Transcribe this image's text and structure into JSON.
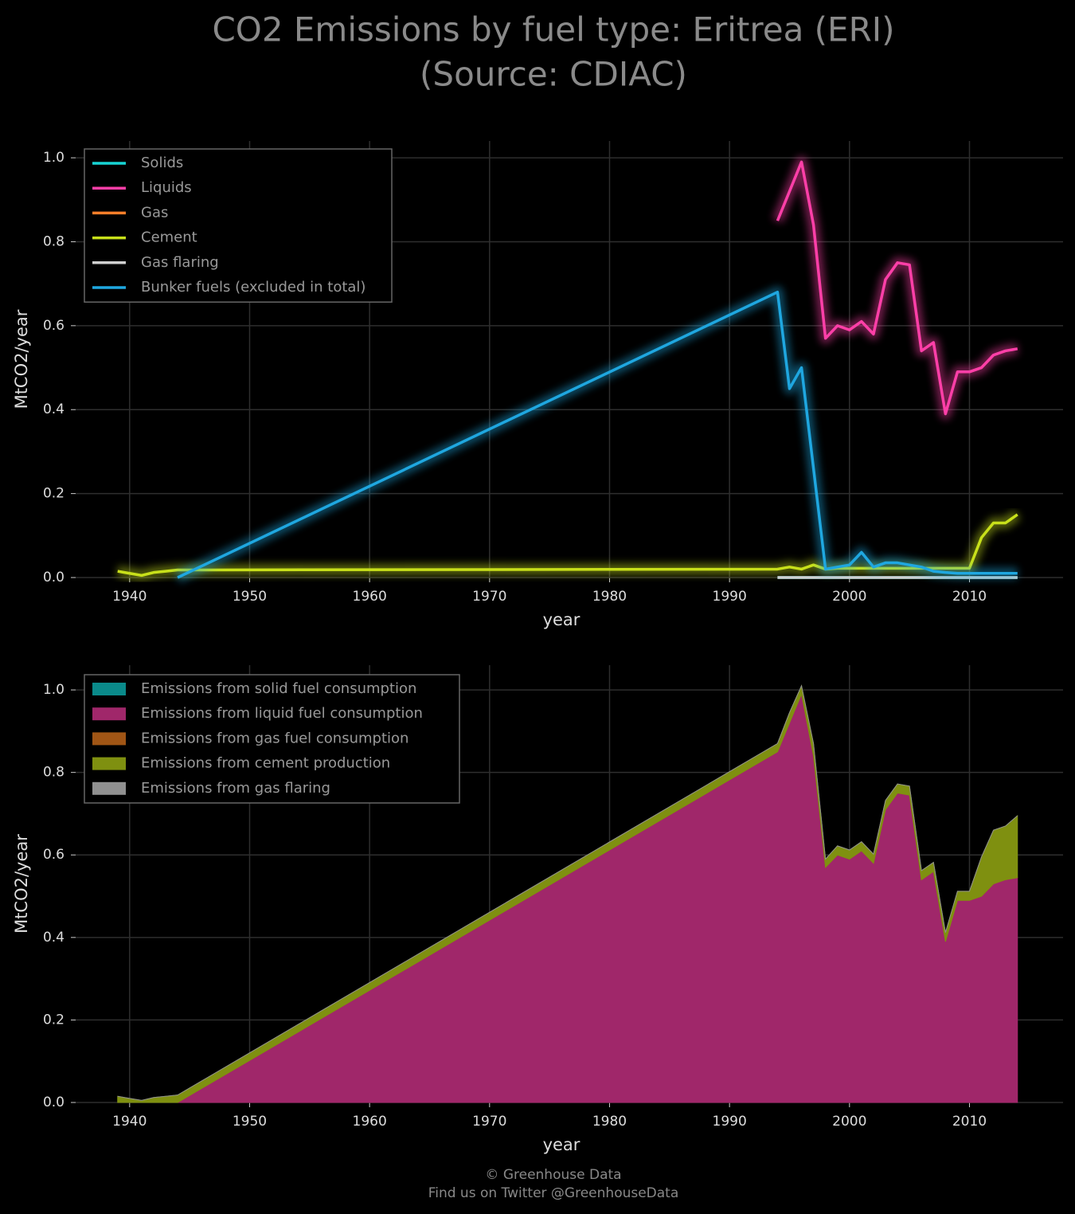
{
  "title": [
    "CO2 Emissions by fuel type: Eritrea (ERI)",
    "(Source: CDIAC)"
  ],
  "footer": [
    "© Greenhouse Data",
    "Find us on Twitter @GreenhouseData"
  ],
  "chart_data": [
    {
      "type": "line",
      "xlabel": "year",
      "ylabel": "MtCO2/year",
      "x": [
        1939,
        1940,
        1941,
        1942,
        1943,
        1944,
        1994,
        1995,
        1996,
        1997,
        1998,
        1999,
        2000,
        2001,
        2002,
        2003,
        2004,
        2005,
        2006,
        2007,
        2008,
        2009,
        2010,
        2011,
        2012,
        2013,
        2014
      ],
      "xlim": [
        1935.5,
        2017.8
      ],
      "xticks": [
        1940,
        1950,
        1960,
        1970,
        1980,
        1990,
        2000,
        2010
      ],
      "ylim": [
        0,
        1.04
      ],
      "yticks": [
        {
          "value": 0,
          "label": "0.0"
        },
        {
          "value": 0.2,
          "label": "0.2"
        },
        {
          "value": 0.4,
          "label": "0.4"
        },
        {
          "value": 0.6,
          "label": "0.6"
        },
        {
          "value": 0.8,
          "label": "0.8"
        },
        {
          "value": 1,
          "label": "1.0"
        }
      ],
      "grid": true,
      "legend": "upper left",
      "series": [
        {
          "name": "Solids",
          "color": "#17d4d4",
          "values": [
            null,
            null,
            null,
            null,
            null,
            null,
            0,
            0,
            0,
            0,
            0,
            0,
            0,
            0,
            0,
            0,
            0,
            0,
            0,
            0,
            0,
            0,
            0,
            0,
            0,
            0,
            0
          ]
        },
        {
          "name": "Liquids",
          "color": "#ff3fa8",
          "values": [
            null,
            null,
            null,
            null,
            null,
            null,
            0.85,
            0.92,
            0.99,
            0.84,
            0.57,
            0.6,
            0.59,
            0.61,
            0.58,
            0.71,
            0.75,
            0.745,
            0.54,
            0.56,
            0.39,
            0.49,
            0.49,
            0.5,
            0.53,
            0.54,
            0.545
          ]
        },
        {
          "name": "Gas",
          "color": "#ff7f2a",
          "values": [
            null,
            null,
            null,
            null,
            null,
            null,
            null,
            null,
            null,
            null,
            null,
            null,
            null,
            null,
            null,
            null,
            null,
            null,
            null,
            null,
            null,
            null,
            null,
            null,
            null,
            null,
            null
          ]
        },
        {
          "name": "Cement",
          "color": "#c8e01a",
          "values": [
            0.015,
            0.01,
            0.005,
            0.012,
            0.015,
            0.018,
            0.02,
            0.025,
            0.02,
            0.03,
            0.02,
            0.022,
            0.022,
            0.022,
            0.022,
            0.022,
            0.022,
            0.022,
            0.022,
            0.022,
            0.022,
            0.022,
            0.022,
            0.095,
            0.13,
            0.13,
            0.15
          ]
        },
        {
          "name": "Gas flaring",
          "color": "#d0d0d0",
          "values": [
            null,
            null,
            null,
            null,
            null,
            null,
            0,
            0,
            0,
            0,
            0,
            0,
            0,
            0,
            0,
            0,
            0,
            0,
            0,
            0,
            0,
            0,
            0,
            0,
            0,
            0,
            0
          ]
        },
        {
          "name": "Bunker fuels (excluded in total)",
          "color": "#1fa7e0",
          "values": [
            null,
            null,
            null,
            null,
            null,
            0,
            0.68,
            0.45,
            0.5,
            0.26,
            0.02,
            0.025,
            0.03,
            0.06,
            0.025,
            0.035,
            0.035,
            0.03,
            0.025,
            0.015,
            0.012,
            0.01,
            0.01,
            0.01,
            0.01,
            0.01,
            0.01
          ]
        }
      ]
    },
    {
      "type": "stacked_area",
      "xlabel": "year",
      "ylabel": "MtCO2/year",
      "x": [
        1939,
        1940,
        1941,
        1942,
        1943,
        1944,
        1994,
        1995,
        1996,
        1997,
        1998,
        1999,
        2000,
        2001,
        2002,
        2003,
        2004,
        2005,
        2006,
        2007,
        2008,
        2009,
        2010,
        2011,
        2012,
        2013,
        2014
      ],
      "xlim": [
        1935.5,
        2017.8
      ],
      "xticks": [
        1940,
        1950,
        1960,
        1970,
        1980,
        1990,
        2000,
        2010
      ],
      "ylim": [
        0,
        1.06
      ],
      "yticks": [
        {
          "value": 0,
          "label": "0.0"
        },
        {
          "value": 0.2,
          "label": "0.2"
        },
        {
          "value": 0.4,
          "label": "0.4"
        },
        {
          "value": 0.6,
          "label": "0.6"
        },
        {
          "value": 0.8,
          "label": "0.8"
        },
        {
          "value": 1,
          "label": "1.0"
        }
      ],
      "grid": true,
      "legend": "upper left",
      "series": [
        {
          "name": "Emissions from solid fuel consumption",
          "color": "#0a8a8a",
          "values": [
            0,
            0,
            0,
            0,
            0,
            0,
            0,
            0,
            0,
            0,
            0,
            0,
            0,
            0,
            0,
            0,
            0,
            0,
            0,
            0,
            0,
            0,
            0,
            0,
            0,
            0,
            0
          ]
        },
        {
          "name": "Emissions from liquid fuel consumption",
          "color": "#a0276a",
          "values": [
            0,
            0,
            0,
            0,
            0,
            0,
            0.85,
            0.92,
            0.99,
            0.84,
            0.57,
            0.6,
            0.59,
            0.61,
            0.58,
            0.71,
            0.75,
            0.745,
            0.54,
            0.56,
            0.39,
            0.49,
            0.49,
            0.5,
            0.53,
            0.54,
            0.545
          ]
        },
        {
          "name": "Emissions from gas fuel consumption",
          "color": "#a05515",
          "values": [
            0,
            0,
            0,
            0,
            0,
            0,
            0,
            0,
            0,
            0,
            0,
            0,
            0,
            0,
            0,
            0,
            0,
            0,
            0,
            0,
            0,
            0,
            0,
            0,
            0,
            0,
            0
          ]
        },
        {
          "name": "Emissions from cement production",
          "color": "#7f9010",
          "values": [
            0.015,
            0.01,
            0.005,
            0.012,
            0.015,
            0.018,
            0.02,
            0.025,
            0.02,
            0.03,
            0.02,
            0.022,
            0.022,
            0.022,
            0.022,
            0.022,
            0.022,
            0.022,
            0.022,
            0.022,
            0.022,
            0.022,
            0.022,
            0.095,
            0.13,
            0.13,
            0.15
          ]
        },
        {
          "name": "Emissions from gas flaring",
          "color": "#909090",
          "values": [
            0,
            0,
            0,
            0,
            0,
            0,
            0,
            0,
            0,
            0,
            0,
            0,
            0,
            0,
            0,
            0,
            0,
            0,
            0,
            0,
            0,
            0,
            0,
            0,
            0,
            0,
            0
          ]
        }
      ]
    }
  ]
}
